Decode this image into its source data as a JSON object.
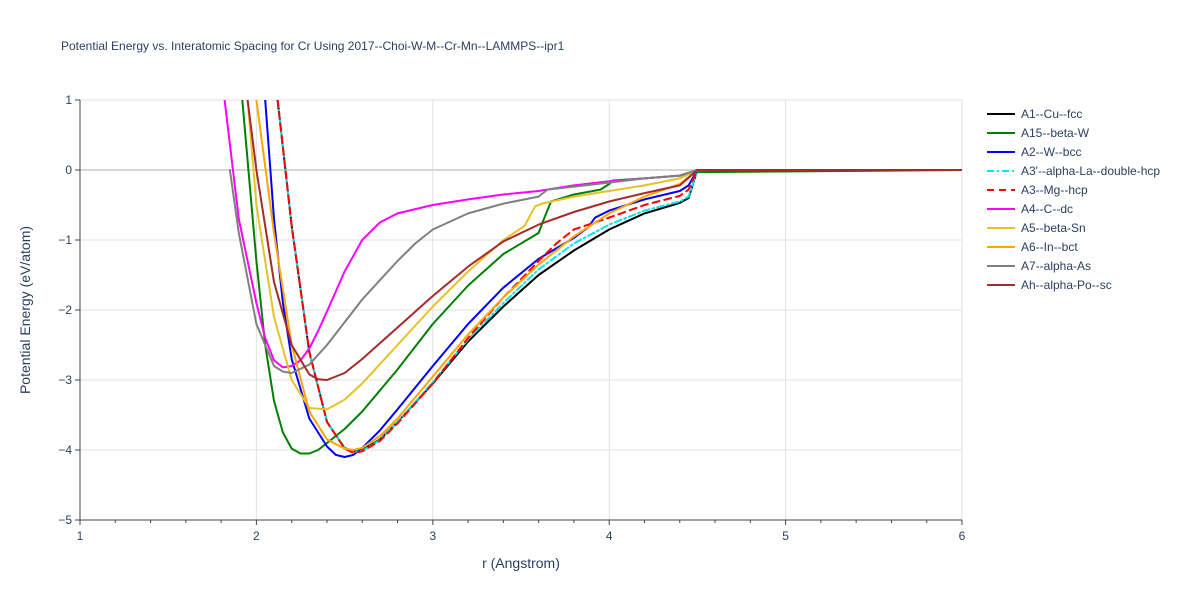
{
  "chart_data": {
    "type": "line",
    "title": "Potential Energy vs. Interatomic Spacing for Cr Using 2017--Choi-W-M--Cr-Mn--LAMMPS--ipr1",
    "xlabel": "r (Angstrom)",
    "ylabel": "Potential Energy (eV/atom)",
    "xlim": [
      1,
      6
    ],
    "ylim": [
      -5,
      1
    ],
    "xticks": [
      1,
      2,
      3,
      4,
      5,
      6
    ],
    "yticks": [
      1,
      0,
      -1,
      -2,
      -3,
      -4,
      -5
    ],
    "ytick_labels": [
      "1",
      "0",
      "−1",
      "−2",
      "−3",
      "−4",
      "−5"
    ],
    "grid": true,
    "legend_position": "right",
    "series": [
      {
        "name": "A1--Cu--fcc",
        "color": "#000000",
        "dash": "solid",
        "x": [
          2.12,
          2.2,
          2.3,
          2.4,
          2.5,
          2.55,
          2.6,
          2.7,
          2.8,
          3.0,
          3.2,
          3.4,
          3.6,
          3.8,
          4.0,
          4.2,
          4.4,
          4.45,
          4.5,
          6.0
        ],
        "y": [
          1.0,
          -0.8,
          -2.6,
          -3.6,
          -3.97,
          -4.02,
          -4.0,
          -3.85,
          -3.6,
          -3.05,
          -2.45,
          -1.95,
          -1.5,
          -1.15,
          -0.85,
          -0.62,
          -0.47,
          -0.4,
          0.0,
          0.0
        ]
      },
      {
        "name": "A15--beta-W",
        "color": "#008000",
        "dash": "solid",
        "x": [
          1.92,
          2.0,
          2.05,
          2.1,
          2.15,
          2.2,
          2.25,
          2.3,
          2.35,
          2.4,
          2.5,
          2.6,
          2.8,
          3.0,
          3.2,
          3.4,
          3.6,
          3.63,
          3.67,
          3.8,
          3.95,
          4.0,
          4.02,
          4.2,
          4.4,
          4.5,
          6.0
        ],
        "y": [
          1.0,
          -1.3,
          -2.5,
          -3.3,
          -3.75,
          -3.98,
          -4.05,
          -4.05,
          -4.0,
          -3.9,
          -3.7,
          -3.45,
          -2.85,
          -2.2,
          -1.65,
          -1.2,
          -0.9,
          -0.7,
          -0.45,
          -0.35,
          -0.28,
          -0.2,
          -0.15,
          -0.12,
          -0.08,
          -0.03,
          0.0
        ]
      },
      {
        "name": "A2--W--bcc",
        "color": "#0000ff",
        "dash": "solid",
        "x": [
          2.05,
          2.1,
          2.15,
          2.2,
          2.3,
          2.4,
          2.45,
          2.5,
          2.55,
          2.6,
          2.7,
          2.8,
          3.0,
          3.2,
          3.4,
          3.6,
          3.8,
          3.88,
          3.92,
          4.0,
          4.2,
          4.4,
          4.45,
          4.5,
          6.0
        ],
        "y": [
          1.0,
          -0.7,
          -1.9,
          -2.7,
          -3.55,
          -3.95,
          -4.07,
          -4.1,
          -4.07,
          -3.97,
          -3.72,
          -3.42,
          -2.8,
          -2.2,
          -1.68,
          -1.27,
          -0.97,
          -0.82,
          -0.68,
          -0.58,
          -0.42,
          -0.3,
          -0.22,
          0.0,
          0.0
        ]
      },
      {
        "name": "A3'--alpha-La--double-hcp",
        "color": "#00e5ee",
        "dash": "dashdot",
        "x": [
          2.12,
          2.2,
          2.3,
          2.4,
          2.5,
          2.55,
          2.6,
          2.7,
          2.8,
          3.0,
          3.2,
          3.4,
          3.6,
          3.8,
          4.0,
          4.2,
          4.4,
          4.45,
          4.5,
          6.0
        ],
        "y": [
          1.0,
          -0.8,
          -2.6,
          -3.6,
          -3.97,
          -4.03,
          -4.01,
          -3.86,
          -3.6,
          -3.03,
          -2.42,
          -1.9,
          -1.42,
          -1.05,
          -0.78,
          -0.58,
          -0.45,
          -0.38,
          0.0,
          0.0
        ]
      },
      {
        "name": "A3--Mg--hcp",
        "color": "#ff0000",
        "dash": "dash",
        "x": [
          2.12,
          2.2,
          2.3,
          2.4,
          2.5,
          2.55,
          2.6,
          2.7,
          2.8,
          3.0,
          3.2,
          3.4,
          3.6,
          3.7,
          3.8,
          4.0,
          4.2,
          4.4,
          4.45,
          4.5,
          6.0
        ],
        "y": [
          1.0,
          -0.8,
          -2.6,
          -3.6,
          -3.98,
          -4.04,
          -4.02,
          -3.87,
          -3.62,
          -3.05,
          -2.4,
          -1.82,
          -1.3,
          -1.05,
          -0.85,
          -0.68,
          -0.5,
          -0.37,
          -0.28,
          0.0,
          0.0
        ]
      },
      {
        "name": "A4--C--dc",
        "color": "#ff00ff",
        "dash": "solid",
        "x": [
          1.82,
          1.9,
          2.0,
          2.05,
          2.1,
          2.15,
          2.2,
          2.25,
          2.3,
          2.35,
          2.4,
          2.5,
          2.6,
          2.7,
          2.8,
          3.0,
          3.2,
          3.4,
          3.6,
          3.8,
          4.0,
          4.2,
          4.4,
          4.5,
          6.0
        ],
        "y": [
          1.0,
          -0.7,
          -1.9,
          -2.4,
          -2.72,
          -2.82,
          -2.8,
          -2.72,
          -2.55,
          -2.3,
          -2.02,
          -1.45,
          -1.0,
          -0.75,
          -0.62,
          -0.5,
          -0.42,
          -0.35,
          -0.3,
          -0.22,
          -0.16,
          -0.12,
          -0.08,
          0.0,
          0.0
        ]
      },
      {
        "name": "A5--beta-Sn",
        "color": "#e6c229",
        "dash": "solid",
        "x": [
          1.95,
          2.0,
          2.1,
          2.2,
          2.3,
          2.4,
          2.5,
          2.6,
          2.8,
          3.0,
          3.2,
          3.4,
          3.52,
          3.58,
          3.62,
          3.8,
          4.0,
          4.2,
          4.4,
          4.5,
          6.0
        ],
        "y": [
          1.0,
          -0.5,
          -2.1,
          -3.0,
          -3.4,
          -3.42,
          -3.28,
          -3.05,
          -2.5,
          -1.95,
          -1.45,
          -1.0,
          -0.8,
          -0.52,
          -0.48,
          -0.38,
          -0.3,
          -0.22,
          -0.12,
          0.0,
          0.0
        ]
      },
      {
        "name": "A6--In--bct",
        "color": "#ffa500",
        "dash": "solid",
        "x": [
          2.0,
          2.1,
          2.2,
          2.3,
          2.4,
          2.5,
          2.55,
          2.6,
          2.7,
          2.8,
          3.0,
          3.2,
          3.4,
          3.6,
          3.8,
          4.0,
          4.2,
          4.4,
          4.5,
          6.0
        ],
        "y": [
          1.0,
          -0.9,
          -2.5,
          -3.45,
          -3.85,
          -3.98,
          -4.0,
          -3.97,
          -3.8,
          -3.55,
          -2.95,
          -2.35,
          -1.82,
          -1.35,
          -0.95,
          -0.62,
          -0.38,
          -0.2,
          0.0,
          0.0
        ]
      },
      {
        "name": "A7--alpha-As",
        "color": "#808080",
        "dash": "solid",
        "x": [
          1.85,
          1.9,
          2.0,
          2.1,
          2.15,
          2.2,
          2.3,
          2.4,
          2.6,
          2.8,
          2.9,
          3.0,
          3.2,
          3.4,
          3.6,
          3.65,
          4.0,
          4.2,
          4.4,
          4.5,
          6.0
        ],
        "y": [
          0.0,
          -0.9,
          -2.2,
          -2.8,
          -2.88,
          -2.9,
          -2.78,
          -2.5,
          -1.85,
          -1.3,
          -1.05,
          -0.85,
          -0.62,
          -0.48,
          -0.38,
          -0.28,
          -0.18,
          -0.12,
          -0.08,
          0.0,
          0.0
        ]
      },
      {
        "name": "Ah--alpha-Po--sc",
        "color": "#a52a2a",
        "dash": "solid",
        "x": [
          1.95,
          2.0,
          2.1,
          2.2,
          2.3,
          2.35,
          2.4,
          2.5,
          2.6,
          2.8,
          3.0,
          3.2,
          3.4,
          3.6,
          3.8,
          4.0,
          4.2,
          4.4,
          4.5,
          6.0
        ],
        "y": [
          1.0,
          0.0,
          -1.6,
          -2.5,
          -2.92,
          -2.99,
          -3.0,
          -2.9,
          -2.7,
          -2.25,
          -1.8,
          -1.38,
          -1.02,
          -0.78,
          -0.6,
          -0.45,
          -0.33,
          -0.22,
          0.0,
          0.0
        ]
      }
    ]
  }
}
